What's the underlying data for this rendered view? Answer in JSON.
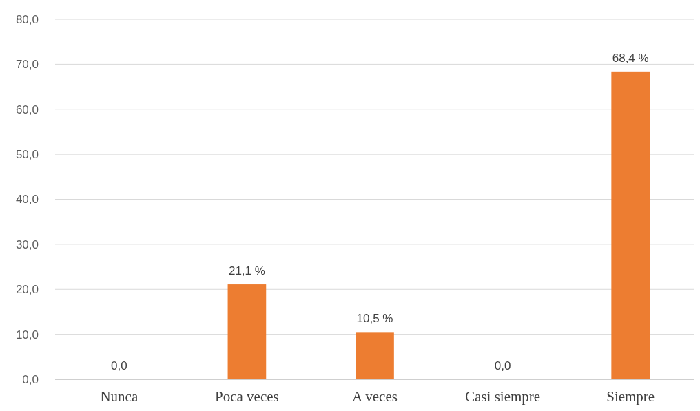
{
  "chart_data": {
    "type": "bar",
    "categories": [
      "Nunca",
      "Poca veces",
      "A veces",
      "Casi siempre",
      "Siempre"
    ],
    "values": [
      0,
      21.1,
      10.5,
      0,
      68.4
    ],
    "color": "#ed7d31",
    "value_labels": [
      "0,0",
      "21,1 %",
      "10,5 %",
      "0,0",
      "68,4 %"
    ],
    "ylim": [
      0,
      80
    ],
    "yticks": [
      {
        "value": 0,
        "label": "0,0"
      },
      {
        "value": 10,
        "label": "10,0"
      },
      {
        "value": 20,
        "label": "20,0"
      },
      {
        "value": 30,
        "label": "30,0"
      },
      {
        "value": 40,
        "label": "40,0"
      },
      {
        "value": 50,
        "label": "50,0"
      },
      {
        "value": 60,
        "label": "60,0"
      },
      {
        "value": 70,
        "label": "70,0"
      },
      {
        "value": 80,
        "label": "80,0"
      }
    ],
    "grid": "y"
  }
}
